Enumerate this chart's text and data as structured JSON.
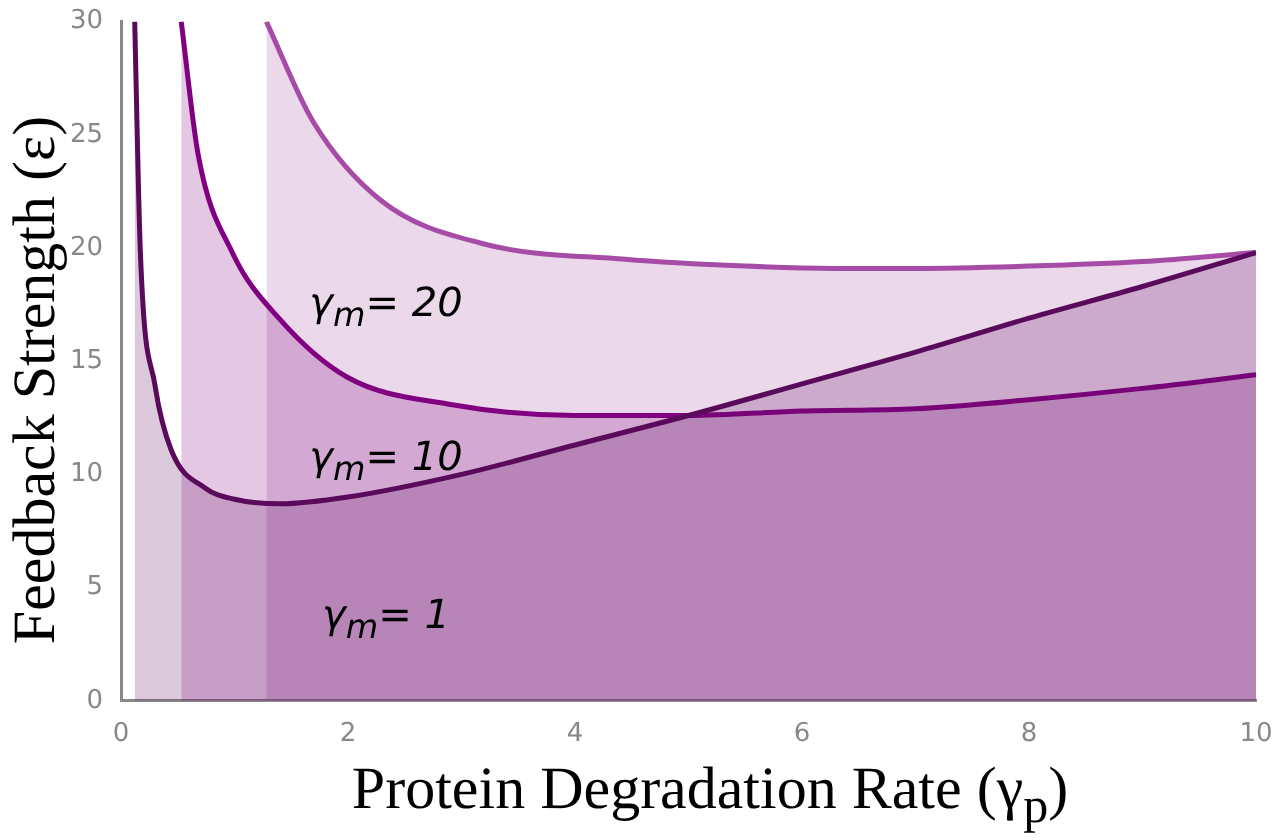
{
  "chart_data": {
    "type": "area",
    "xlabel": "Protein Degradation Rate (γ$_{p}$)",
    "ylabel": "Feedback Strength (ε)",
    "xlim": [
      0,
      10
    ],
    "ylim": [
      0,
      30
    ],
    "xticks": [
      0,
      2,
      4,
      6,
      8,
      10
    ],
    "yticks": [
      0,
      5,
      10,
      15,
      20,
      25,
      30
    ],
    "grid": false,
    "legend": false,
    "marker": "none",
    "line_style": "solid",
    "series": [
      {
        "color": "#5a0a5a",
        "x": [
          0.12,
          0.17,
          0.3,
          0.44,
          0.74,
          1.0,
          1.4,
          2.0,
          3.0,
          4.0,
          5.0,
          6.0,
          7.0,
          8.0,
          9.0,
          10.0
        ],
        "values": [
          30,
          19.8,
          13.9,
          11.1,
          9.4,
          8.9,
          8.7,
          9.0,
          10.0,
          11.3,
          12.6,
          14.0,
          15.4,
          16.9,
          18.3,
          19.8
        ]
      },
      {
        "color": "#800080",
        "x": [
          0.53,
          0.68,
          0.98,
          1.39,
          1.99,
          2.89,
          4.0,
          5.0,
          6.0,
          7.0,
          8.0,
          9.0,
          10.0
        ],
        "values": [
          30,
          24.1,
          19.8,
          16.9,
          14.3,
          13.1,
          12.6,
          12.6,
          12.8,
          12.9,
          13.3,
          13.8,
          14.4
        ]
      },
      {
        "color": "#a64ca6",
        "x": [
          1.28,
          1.69,
          2.29,
          3.18,
          4.44,
          5.5,
          6.3,
          7.0,
          8.0,
          9.0,
          10.0
        ],
        "values": [
          30,
          25.6,
          22.1,
          20.2,
          19.5,
          19.2,
          19.1,
          19.1,
          19.2,
          19.4,
          19.8
        ]
      }
    ],
    "annotations": [
      "γ$_{m}$= 20",
      "γ$_{m}$= 10",
      "γ$_{m}$= 1"
    ]
  }
}
